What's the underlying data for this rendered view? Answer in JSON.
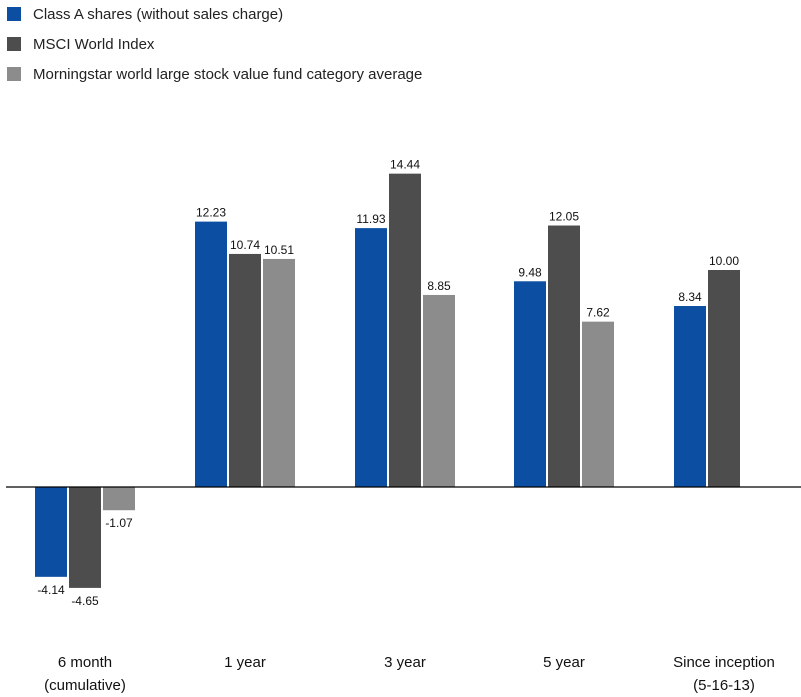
{
  "chart_data": {
    "type": "bar",
    "categories": [
      [
        "6 month",
        "(cumulative)"
      ],
      [
        "1 year"
      ],
      [
        "3 year"
      ],
      [
        "5 year"
      ],
      [
        "Since inception",
        "(5-16-13)"
      ]
    ],
    "series": [
      {
        "name": "Class A shares (without sales charge)",
        "color": "#0c4ea2",
        "values": [
          -4.14,
          12.23,
          11.93,
          9.48,
          8.34
        ],
        "labels": [
          "-4.14",
          "12.23",
          "11.93",
          "9.48",
          "8.34"
        ]
      },
      {
        "name": "MSCI World Index",
        "color": "#4d4d4d",
        "values": [
          -4.65,
          10.74,
          14.44,
          12.05,
          10.0
        ],
        "labels": [
          "-4.65",
          "10.74",
          "14.44",
          "12.05",
          "10.00"
        ]
      },
      {
        "name": "Morningstar world large stock value fund category average",
        "color": "#8c8c8c",
        "values": [
          -1.07,
          10.51,
          8.85,
          7.62,
          null
        ],
        "labels": [
          "-1.07",
          "10.51",
          "8.85",
          "7.62",
          ""
        ]
      }
    ],
    "ylim": [
      -6,
      15
    ],
    "legend_position": "top-left",
    "grid": false,
    "zero_line_color": "#000000"
  }
}
